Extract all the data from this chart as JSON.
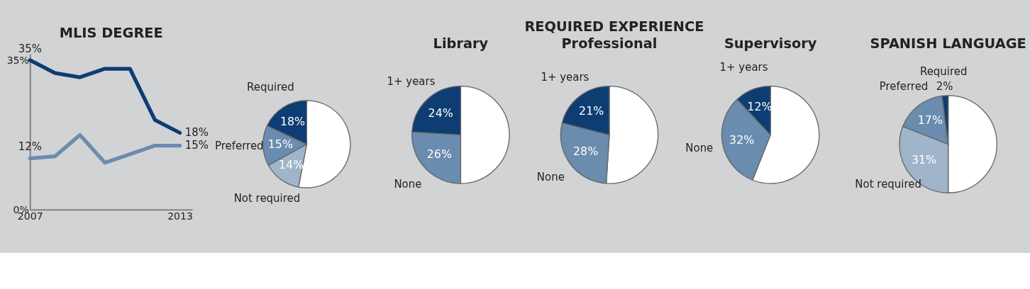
{
  "chart_data": [
    {
      "type": "line",
      "title": "MLIS DEGREE",
      "x": [
        2007,
        2008,
        2009,
        2010,
        2011,
        2012,
        2013
      ],
      "xlim": [
        2007,
        2013.5
      ],
      "xticks": [
        2007,
        2013
      ],
      "ylim": [
        0,
        36.5
      ],
      "yticks": [
        {
          "value": 0,
          "label": "0%"
        },
        {
          "value": 35,
          "label": "35%"
        }
      ],
      "grid": false,
      "marker": "none",
      "line_style": "solid",
      "series": [
        {
          "color": "#0d3d72",
          "values": [
            35,
            32,
            31,
            33,
            33,
            21,
            18
          ],
          "value_labels": [
            "35%",
            null,
            null,
            null,
            null,
            null,
            "18%"
          ]
        },
        {
          "color": "#6a8cae",
          "values": [
            12,
            12.5,
            17.5,
            11,
            13,
            15,
            15
          ],
          "value_labels": [
            "12%",
            null,
            null,
            null,
            null,
            null,
            "15%"
          ]
        }
      ]
    },
    {
      "type": "pie",
      "categories": [
        null,
        "Not required",
        "Preferred",
        "Required"
      ],
      "values": [
        53,
        14,
        15,
        18
      ],
      "colors": [
        "#ffffff",
        "#a0b4ca",
        "#6a8cae",
        "#0d3d72"
      ],
      "value_labels": [
        null,
        "14%",
        "15%",
        "18%"
      ]
    },
    {
      "type": "pie",
      "title": "Library",
      "annotations": [
        "REQUIRED EXPERIENCE"
      ],
      "categories": [
        null,
        "None",
        "1+ years"
      ],
      "values": [
        50,
        26,
        24
      ],
      "colors": [
        "#ffffff",
        "#6a8cae",
        "#0d3d72"
      ],
      "value_labels": [
        null,
        "26%",
        "24%"
      ]
    },
    {
      "type": "pie",
      "title": "Professional",
      "categories": [
        null,
        "None",
        "1+ years"
      ],
      "values": [
        51,
        28,
        21
      ],
      "colors": [
        "#ffffff",
        "#6a8cae",
        "#0d3d72"
      ],
      "value_labels": [
        null,
        "28%",
        "21%"
      ]
    },
    {
      "type": "pie",
      "title": "Supervisory",
      "categories": [
        null,
        "None",
        "1+ years"
      ],
      "values": [
        56,
        32,
        12
      ],
      "colors": [
        "#ffffff",
        "#6a8cae",
        "#0d3d72"
      ],
      "value_labels": [
        null,
        "32%",
        "12%"
      ]
    },
    {
      "type": "pie",
      "title": "SPANISH LANGUAGE",
      "categories": [
        null,
        "Not required",
        "Preferred",
        "Required"
      ],
      "values": [
        50,
        31,
        17,
        2
      ],
      "colors": [
        "#ffffff",
        "#a0b4ca",
        "#6a8cae",
        "#0d3d72"
      ],
      "value_labels": [
        null,
        "31%",
        "17%",
        "2%"
      ]
    }
  ]
}
